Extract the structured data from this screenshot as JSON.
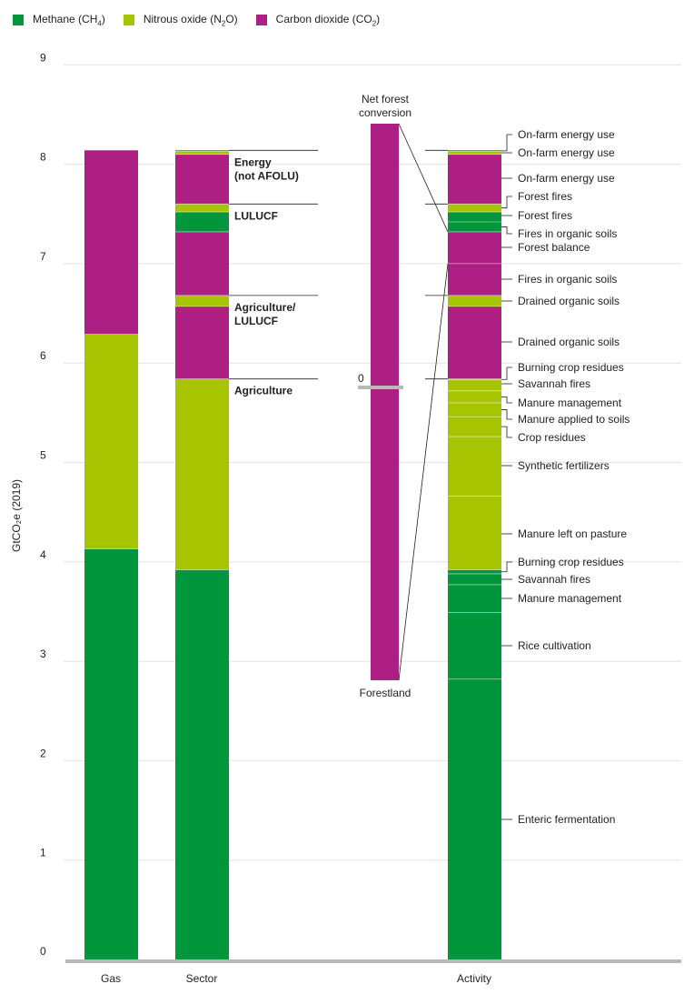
{
  "legend": [
    {
      "name_pre": "Methane (CH",
      "sub": "4",
      "name_post": ")",
      "color": "#00963c"
    },
    {
      "name_pre": "Nitrous oxide (N",
      "sub": "2",
      "name_post": "O)",
      "color": "#a6c400"
    },
    {
      "name_pre": "Carbon dioxide (CO",
      "sub": "2",
      "name_post": ")",
      "color": "#ad1f83"
    }
  ],
  "chart_data": {
    "type": "bar",
    "stacked": true,
    "ylabel": "GtCO₂e (2019)",
    "ylim": [
      0,
      9
    ],
    "yticks": [
      "0",
      "1",
      "2",
      "3",
      "4",
      "5",
      "6",
      "7",
      "8",
      "9"
    ],
    "grid": true,
    "legend_position": "top-left",
    "colors": {
      "CH4": "#00963c",
      "N2O": "#a6c400",
      "CO2": "#ad1f83"
    },
    "columns": [
      {
        "name": "Gas",
        "segments": [
          {
            "gas": "CH4",
            "from": 0,
            "to": 4.13
          },
          {
            "gas": "N2O",
            "from": 4.13,
            "to": 6.29
          },
          {
            "gas": "CO2",
            "from": 6.29,
            "to": 8.14
          }
        ]
      },
      {
        "name": "Sector",
        "segments": [
          {
            "gas": "CH4",
            "from": 0,
            "to": 3.92
          },
          {
            "gas": "N2O",
            "from": 3.92,
            "to": 5.84
          },
          {
            "gas": "CO2",
            "from": 5.84,
            "to": 6.57
          },
          {
            "gas": "N2O",
            "from": 6.57,
            "to": 6.68
          },
          {
            "gas": "CO2",
            "from": 6.68,
            "to": 7.32
          },
          {
            "gas": "CH4",
            "from": 7.32,
            "to": 7.52
          },
          {
            "gas": "N2O",
            "from": 7.52,
            "to": 7.6
          },
          {
            "gas": "CO2",
            "from": 7.6,
            "to": 8.1
          },
          {
            "gas": "N2O",
            "from": 8.1,
            "to": 8.13
          },
          {
            "gas": "CH4",
            "from": 8.13,
            "to": 8.14
          }
        ]
      },
      {
        "name": "Activity",
        "segments": [
          {
            "gas": "CH4",
            "from": 0,
            "to": 2.82,
            "label": "Enteric fermentation"
          },
          {
            "gas": "CH4",
            "from": 2.82,
            "to": 3.49,
            "label": "Rice cultivation"
          },
          {
            "gas": "CH4",
            "from": 3.49,
            "to": 3.77,
            "label": "Manure management"
          },
          {
            "gas": "CH4",
            "from": 3.77,
            "to": 3.88,
            "label": "Savannah fires"
          },
          {
            "gas": "CH4",
            "from": 3.88,
            "to": 3.92,
            "label": "Burning crop residues"
          },
          {
            "gas": "N2O",
            "from": 3.92,
            "to": 4.66,
            "label": "Manure left on pasture"
          },
          {
            "gas": "N2O",
            "from": 4.66,
            "to": 5.26,
            "label": "Synthetic fertilizers"
          },
          {
            "gas": "N2O",
            "from": 5.26,
            "to": 5.46,
            "label": "Crop residues"
          },
          {
            "gas": "N2O",
            "from": 5.46,
            "to": 5.6,
            "label": "Manure applied to soils"
          },
          {
            "gas": "N2O",
            "from": 5.6,
            "to": 5.72,
            "label": "Manure management"
          },
          {
            "gas": "N2O",
            "from": 5.72,
            "to": 5.83,
            "label": "Savannah fires"
          },
          {
            "gas": "N2O",
            "from": 5.83,
            "to": 5.84,
            "label": "Burning crop residues"
          },
          {
            "gas": "CO2",
            "from": 5.84,
            "to": 6.57,
            "label": "Drained organic soils"
          },
          {
            "gas": "N2O",
            "from": 6.57,
            "to": 6.68,
            "label": "Drained organic soils"
          },
          {
            "gas": "CO2",
            "from": 6.68,
            "to": 7.0,
            "label": "Fires in organic soils"
          },
          {
            "gas": "CO2",
            "from": 7.0,
            "to": 7.32,
            "label": "Forest balance"
          },
          {
            "gas": "CH4",
            "from": 7.32,
            "to": 7.42,
            "label": "Fires in organic soils"
          },
          {
            "gas": "CH4",
            "from": 7.42,
            "to": 7.52,
            "label": "Forest fires"
          },
          {
            "gas": "N2O",
            "from": 7.52,
            "to": 7.6,
            "label": "Forest fires"
          },
          {
            "gas": "CO2",
            "from": 7.6,
            "to": 8.1,
            "label": "On-farm energy use"
          },
          {
            "gas": "N2O",
            "from": 8.1,
            "to": 8.13,
            "label": "On-farm energy use"
          },
          {
            "gas": "CH4",
            "from": 8.13,
            "to": 8.14,
            "label": "On-farm energy use"
          }
        ]
      }
    ],
    "sector_groups": [
      {
        "label_lines": [
          "Energy",
          "(not AFOLU)"
        ],
        "from": 7.6,
        "to": 8.14
      },
      {
        "label_lines": [
          "LULUCF"
        ],
        "from": 6.68,
        "to": 7.6
      },
      {
        "label_lines": [
          "Agriculture/",
          "LULUCF"
        ],
        "from": 5.84,
        "to": 6.68
      },
      {
        "label_lines": [
          "Agriculture"
        ],
        "from": 0,
        "to": 5.84
      }
    ],
    "net_forest": {
      "top_label": [
        "Net forest",
        "conversion"
      ],
      "bottom_label": "Forestland",
      "zero_label": "0",
      "color": "#ad1f83"
    }
  }
}
